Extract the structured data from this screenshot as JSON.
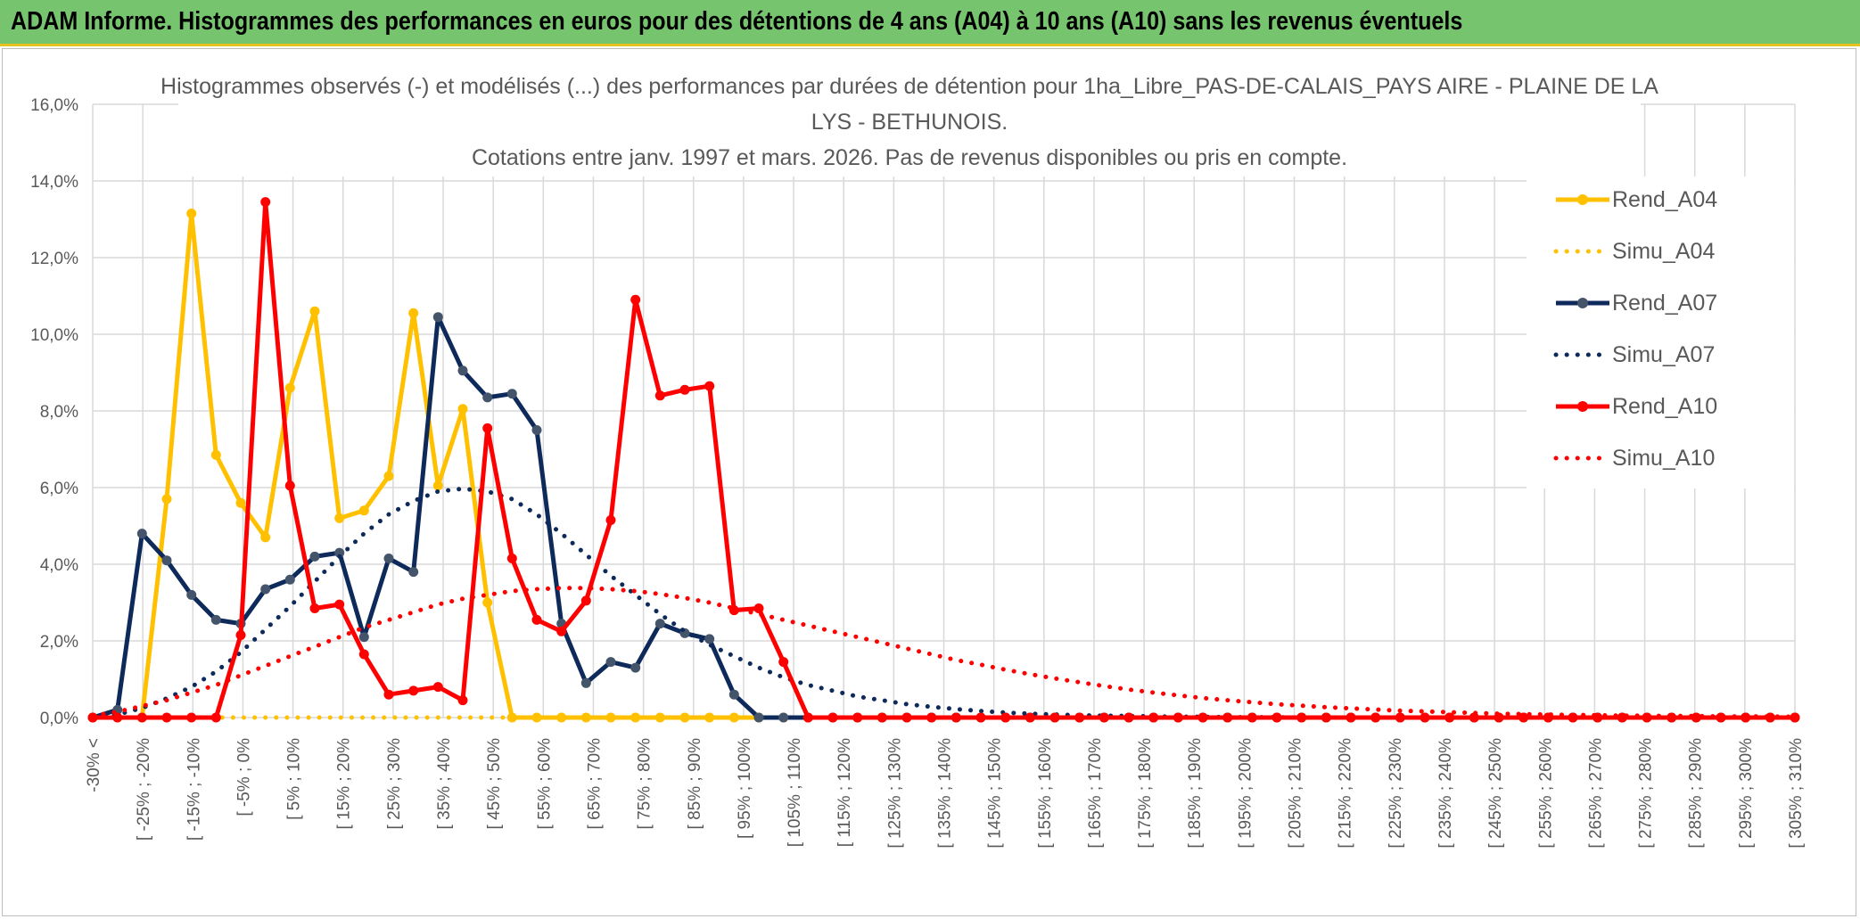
{
  "banner": {
    "text": "ADAM Informe. Histogrammes des performances en euros pour des détentions de 4 ans (A04) à 10 ans (A10) sans les revenus éventuels",
    "color": "#77c46f"
  },
  "chart_data": {
    "type": "line",
    "title": [
      "Histogrammes observés (-) et modélisés (...) des performances par durées de détention pour 1ha_Libre_PAS-DE-CALAIS_PAYS AIRE - PLAINE DE LA",
      "LYS - BETHUNOIS.",
      "Cotations entre janv. 1997 et mars. 2026. Pas de revenus disponibles ou pris en compte."
    ],
    "ylim": [
      0,
      16
    ],
    "yticks": [
      "0,0%",
      "2,0%",
      "4,0%",
      "6,0%",
      "8,0%",
      "10,0%",
      "12,0%",
      "14,0%",
      "16,0%"
    ],
    "xticks": [
      "-30% <",
      "[ -25% ; -20%",
      "[ -15% ; -10%",
      "[ -5% ; 0%",
      "[ 5% ; 10%",
      "[ 15% ; 20%",
      "[ 25% ; 30%",
      "[ 35% ; 40%",
      "[ 45% ; 50%",
      "[ 55% ; 60%",
      "[ 65% ; 70%",
      "[ 75% ; 80%",
      "[ 85% ; 90%",
      "[ 95% ; 100%",
      "[ 105% ; 110%",
      "[ 115% ; 120%",
      "[ 125% ; 130%",
      "[ 135% ; 140%",
      "[ 145% ; 150%",
      "[ 155% ; 160%",
      "[ 165% ; 170%",
      "[ 175% ; 180%",
      "[ 185% ; 190%",
      "[ 195% ; 200%",
      "[ 205% ; 210%",
      "[ 215% ; 220%",
      "[ 225% ; 230%",
      "[ 235% ; 240%",
      "[ 245% ; 250%",
      "[ 255% ; 260%",
      "[ 265% ; 270%",
      "[ 275% ; 280%",
      "[ 285% ; 290%",
      "[ 295% ; 300%",
      "[ 305% ; 310%"
    ],
    "grid": true,
    "legend_position": "top-right",
    "series": [
      {
        "name": "Rend_A04",
        "style": "solid",
        "color": "#ffc000",
        "values": [
          0,
          0,
          0,
          5.7,
          13.15,
          6.85,
          5.6,
          4.7,
          8.6,
          10.6,
          5.2,
          5.4,
          6.3,
          10.55,
          6.05,
          8.05,
          3.0,
          0,
          0,
          0,
          0,
          0,
          0,
          0,
          0,
          0,
          0
        ]
      },
      {
        "name": "Simu_A04",
        "style": "dotted",
        "color": "#ffc000",
        "values": [
          0,
          0,
          0,
          0,
          0,
          0,
          0,
          0,
          0,
          0,
          0,
          0,
          0,
          0,
          0,
          0,
          0,
          0,
          0,
          0,
          0,
          0,
          0,
          0,
          0,
          0,
          0
        ]
      },
      {
        "name": "Rend_A07",
        "style": "solid",
        "color": "#0e2a5b",
        "values": [
          0,
          0.2,
          4.8,
          4.1,
          3.2,
          2.55,
          2.45,
          3.35,
          3.6,
          4.2,
          4.3,
          2.1,
          4.15,
          3.8,
          10.45,
          9.05,
          8.35,
          8.45,
          7.5,
          2.45,
          0.9,
          1.45,
          1.3,
          2.45,
          2.2,
          2.05,
          0.6,
          0,
          0,
          0,
          0,
          0,
          0,
          0,
          0,
          0,
          0,
          0,
          0,
          0,
          0,
          0,
          0,
          0,
          0,
          0,
          0,
          0,
          0,
          0,
          0,
          0,
          0,
          0,
          0,
          0,
          0,
          0,
          0,
          0,
          0,
          0,
          0,
          0,
          0,
          0,
          0,
          0,
          0,
          0
        ]
      },
      {
        "name": "Simu_A07",
        "style": "dotted",
        "color": "#0e2a5b",
        "values": [
          0,
          0.08,
          0.25,
          0.5,
          0.8,
          1.2,
          1.7,
          2.3,
          2.9,
          3.55,
          4.2,
          4.8,
          5.3,
          5.65,
          5.9,
          5.97,
          5.9,
          5.7,
          5.3,
          4.8,
          4.25,
          3.7,
          3.2,
          2.7,
          2.25,
          1.9,
          1.6,
          1.3,
          1.05,
          0.85,
          0.7,
          0.55,
          0.45,
          0.35,
          0.28,
          0.22,
          0.17,
          0.13,
          0.1,
          0.08,
          0.06,
          0.05,
          0.04,
          0.03,
          0.02,
          0.02,
          0.01,
          0.01,
          0.01,
          0,
          0,
          0,
          0,
          0,
          0,
          0,
          0,
          0,
          0,
          0,
          0,
          0,
          0,
          0,
          0,
          0,
          0,
          0,
          0,
          0
        ]
      },
      {
        "name": "Rend_A10",
        "style": "solid",
        "color": "#ff0000",
        "values": [
          0,
          0,
          0,
          0,
          0,
          0,
          2.15,
          13.45,
          6.05,
          2.85,
          2.95,
          1.65,
          0.6,
          0.7,
          0.8,
          0.45,
          7.55,
          4.15,
          2.55,
          2.25,
          3.05,
          5.15,
          10.9,
          8.4,
          8.55,
          8.65,
          2.8,
          2.85,
          1.45,
          0,
          0,
          0,
          0,
          0,
          0,
          0,
          0,
          0,
          0,
          0,
          0,
          0,
          0,
          0,
          0,
          0,
          0,
          0,
          0,
          0,
          0,
          0,
          0,
          0,
          0,
          0,
          0,
          0,
          0,
          0,
          0,
          0,
          0,
          0,
          0,
          0,
          0,
          0,
          0,
          0
        ]
      },
      {
        "name": "Simu_A10",
        "style": "dotted",
        "color": "#ff0000",
        "values": [
          0.05,
          0.15,
          0.3,
          0.45,
          0.65,
          0.85,
          1.1,
          1.35,
          1.6,
          1.85,
          2.1,
          2.35,
          2.55,
          2.75,
          2.95,
          3.1,
          3.2,
          3.3,
          3.35,
          3.38,
          3.38,
          3.35,
          3.3,
          3.22,
          3.12,
          3.0,
          2.85,
          2.7,
          2.55,
          2.4,
          2.25,
          2.1,
          1.95,
          1.8,
          1.65,
          1.5,
          1.38,
          1.25,
          1.13,
          1.02,
          0.92,
          0.82,
          0.73,
          0.65,
          0.58,
          0.51,
          0.45,
          0.4,
          0.35,
          0.31,
          0.27,
          0.24,
          0.21,
          0.18,
          0.16,
          0.14,
          0.12,
          0.1,
          0.09,
          0.08,
          0.07,
          0.06,
          0.05,
          0.05,
          0.04,
          0.04,
          0.03,
          0.03,
          0.03,
          0.02
        ]
      }
    ]
  }
}
